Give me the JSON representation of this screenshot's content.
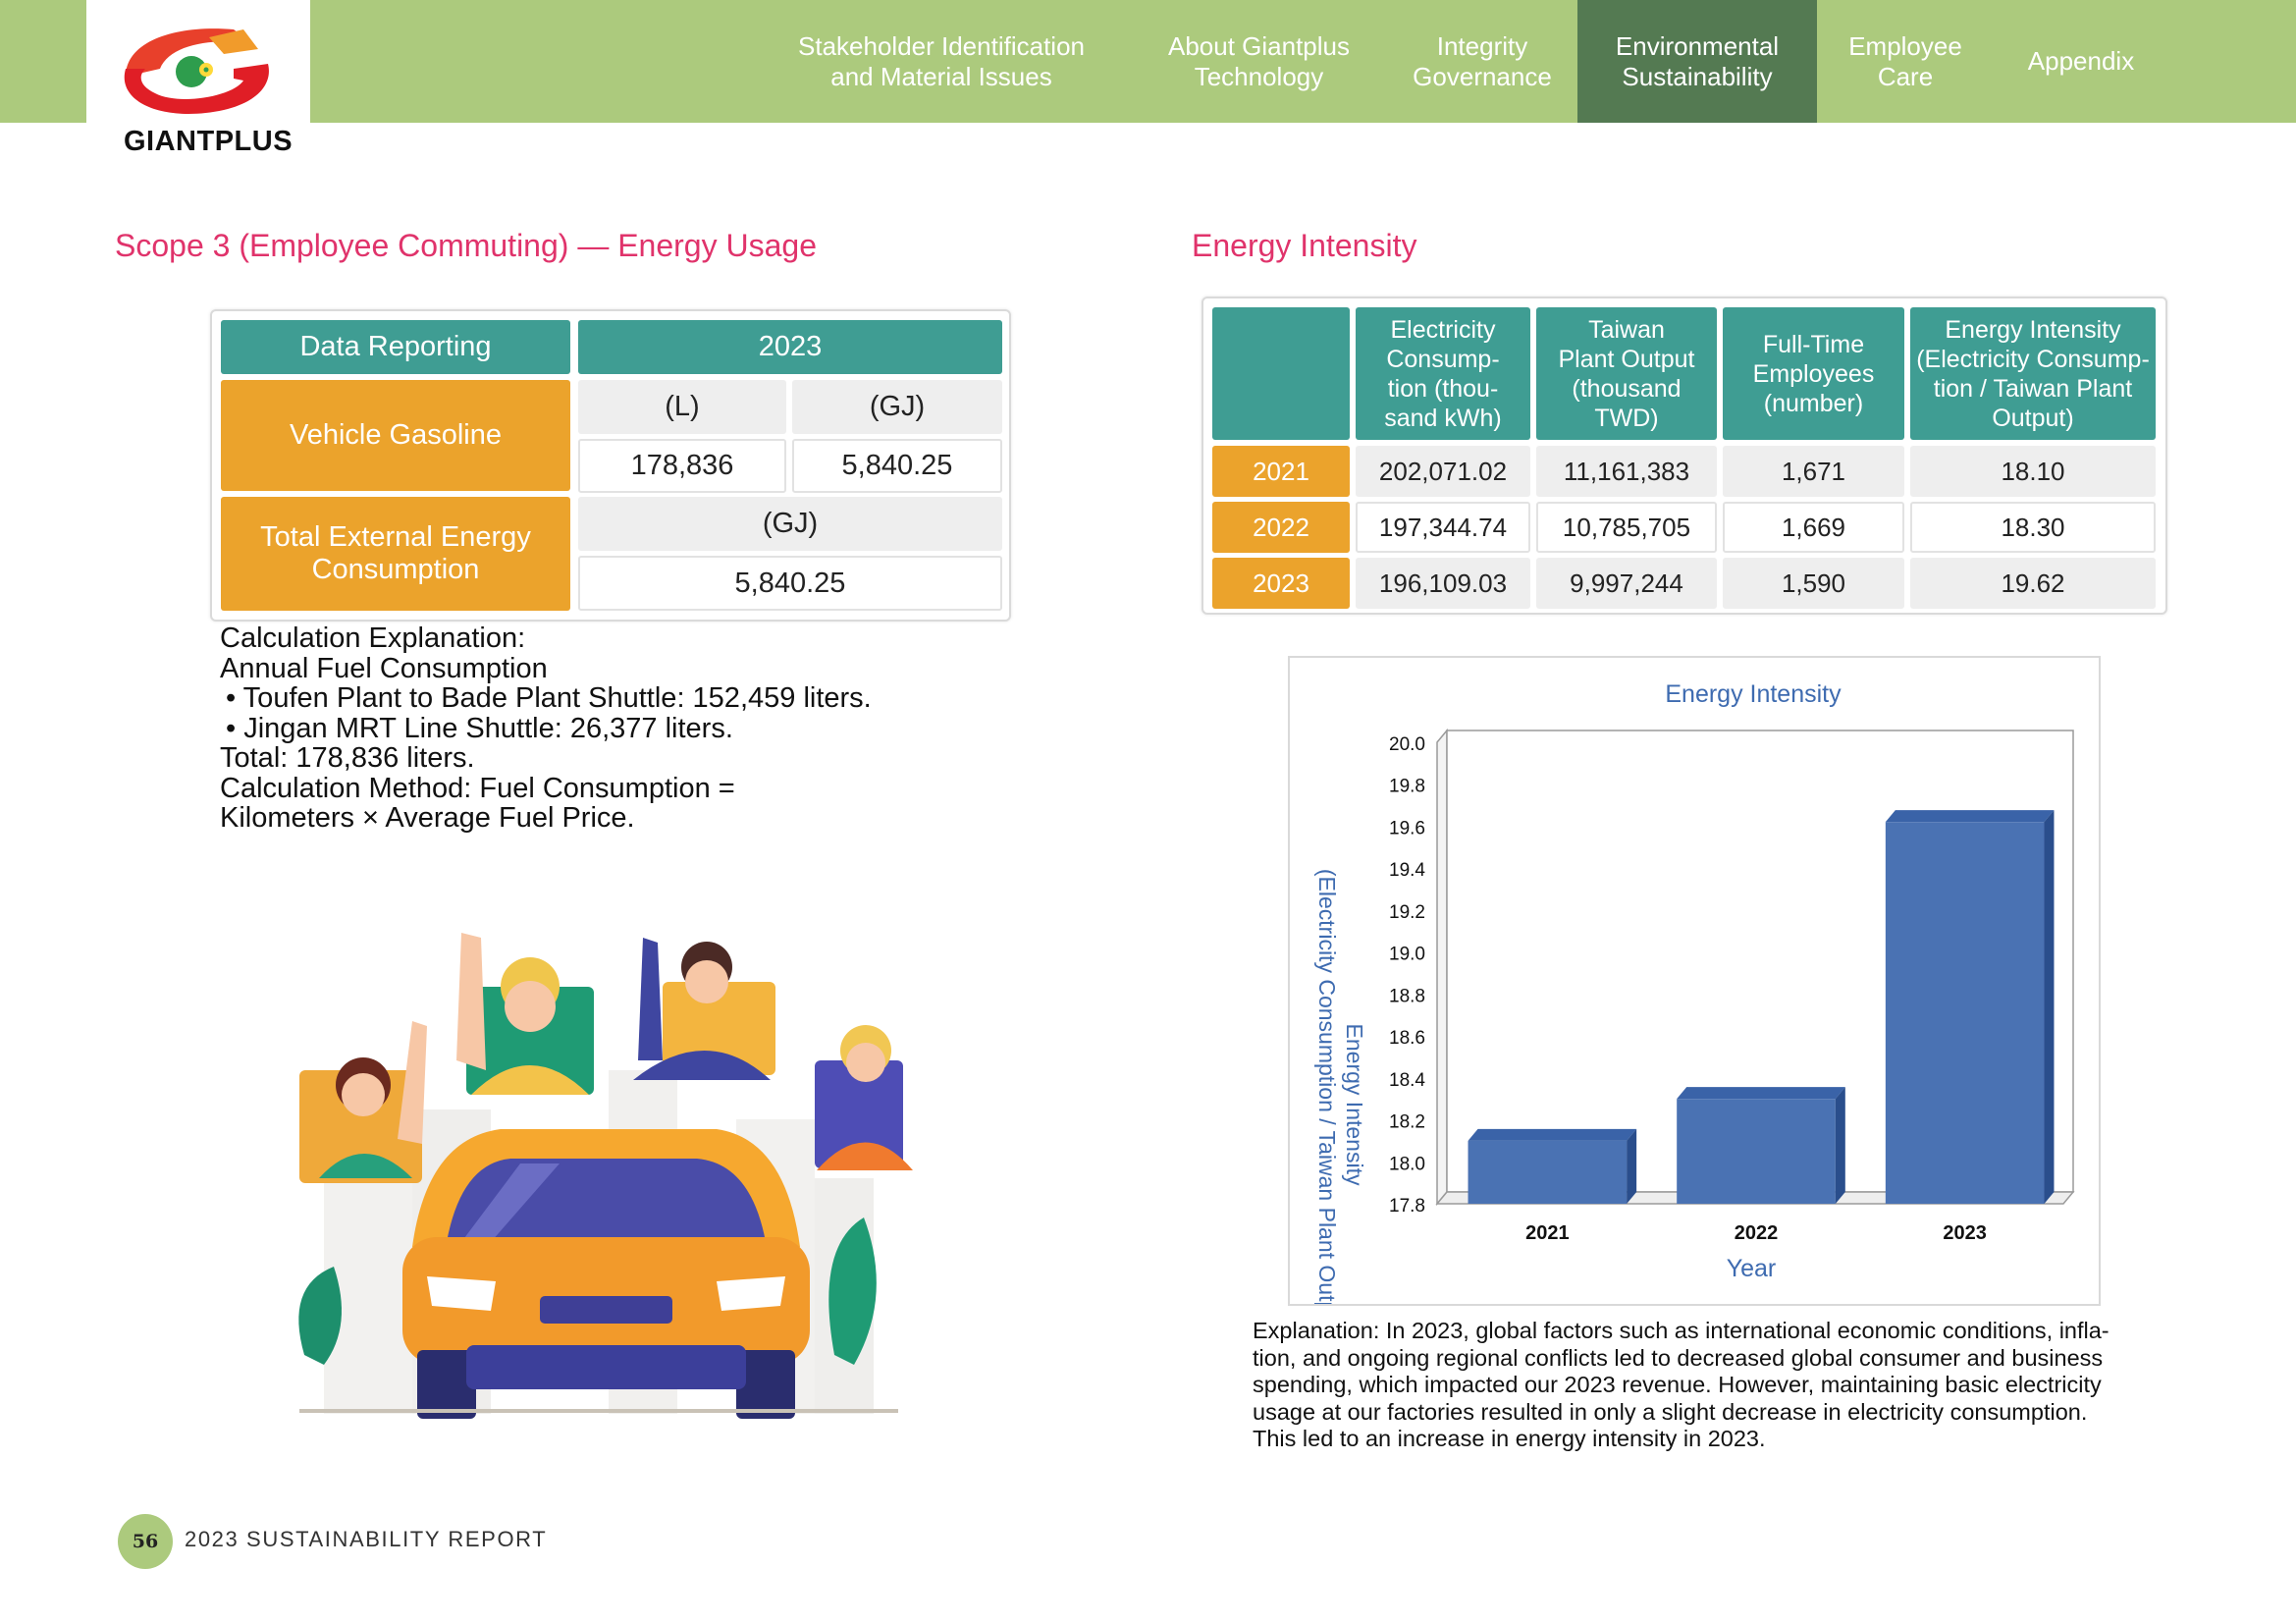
{
  "header": {
    "logo_text": "GIANTPLUS",
    "nav": [
      {
        "label": "Stakeholder Identification and Material Issues",
        "l1": "Stakeholder Identification",
        "l2": "and Material Issues"
      },
      {
        "label": "About Giantplus Technology",
        "l1": "About Giantplus",
        "l2": "Technology"
      },
      {
        "label": "Integrity Governance",
        "l1": "Integrity",
        "l2": "Governance"
      },
      {
        "label": "Environmental Sustainability",
        "l1": "Environmental",
        "l2": "Sustainability",
        "active": true
      },
      {
        "label": "Employee Care",
        "l1": "Employee",
        "l2": "Care"
      },
      {
        "label": "Appendix",
        "l1": "Appendix",
        "l2": ""
      }
    ],
    "active_color": "#547a52",
    "bar_color": "#acca7d"
  },
  "scope3": {
    "title": "Scope 3 (Employee Commuting) — Energy Usage",
    "col_header": "Data Reporting",
    "year": "2023",
    "row1_label": "Vehicle Gasoline",
    "unit_l": "(L)",
    "unit_gj": "(GJ)",
    "liters": "178,836",
    "gj": "5,840.25",
    "row2_label_l1": "Total External Energy",
    "row2_label_l2": "Consumption",
    "row2_unit": "(GJ)",
    "row2_value": "5,840.25",
    "explanation": [
      "Calculation Explanation:",
      "Annual Fuel Consumption",
      "• Toufen Plant to Bade Plant Shuttle: 152,459 liters.",
      "• Jingan MRT Line Shuttle: 26,377 liters.",
      "Total: 178,836 liters.",
      "Calculation Method: Fuel Consumption =",
      "Kilometers × Average Fuel Price."
    ]
  },
  "intensity": {
    "title": "Energy Intensity",
    "headers": [
      [
        "Electricity",
        "Consump-",
        "tion (thou-",
        "sand kWh)"
      ],
      [
        "Taiwan",
        "Plant Output",
        "(thousand",
        "TWD)"
      ],
      [
        "Full-Time",
        "Employees",
        "(number)"
      ],
      [
        "Energy Intensity",
        "(Electricity Consump-",
        "tion / Taiwan Plant",
        "Output)"
      ]
    ],
    "rows": [
      {
        "year": "2021",
        "electricity": "202,071.02",
        "output": "11,161,383",
        "employees": "1,671",
        "intensity": "18.10"
      },
      {
        "year": "2022",
        "electricity": "197,344.74",
        "output": "10,785,705",
        "employees": "1,669",
        "intensity": "18.30"
      },
      {
        "year": "2023",
        "electricity": "196,109.03",
        "output": "9,997,244",
        "employees": "1,590",
        "intensity": "19.62"
      }
    ]
  },
  "chart_data": {
    "type": "bar",
    "title": "Energy Intensity",
    "xlabel": "Year",
    "ylabel_l1": "Energy Intensity",
    "ylabel_l2": "(Electricity Consumption / Taiwan Plant Output)",
    "categories": [
      "2021",
      "2022",
      "2023"
    ],
    "values": [
      18.1,
      18.3,
      19.62
    ],
    "ylim": [
      17.8,
      20.0
    ],
    "yticks": [
      "20.0",
      "19.8",
      "19.6",
      "19.4",
      "19.2",
      "19.0",
      "18.8",
      "18.6",
      "18.4",
      "18.2",
      "18.0",
      "17.8"
    ],
    "bar_color": "#4a72b3",
    "grid": false,
    "style": "3d"
  },
  "chart_explanation": [
    "Explanation: In 2023, global factors such as international economic conditions, infla-",
    "tion, and ongoing regional conflicts led to decreased global consumer and business",
    "spending, which impacted our 2023 revenue. However, maintaining basic electricity",
    "usage at our factories resulted in only a slight decrease in electricity consumption.",
    "This led to an increase in energy intensity in 2023."
  ],
  "footer": {
    "page_number": "56",
    "report_title": "2023 SUSTAINABILITY REPORT"
  }
}
